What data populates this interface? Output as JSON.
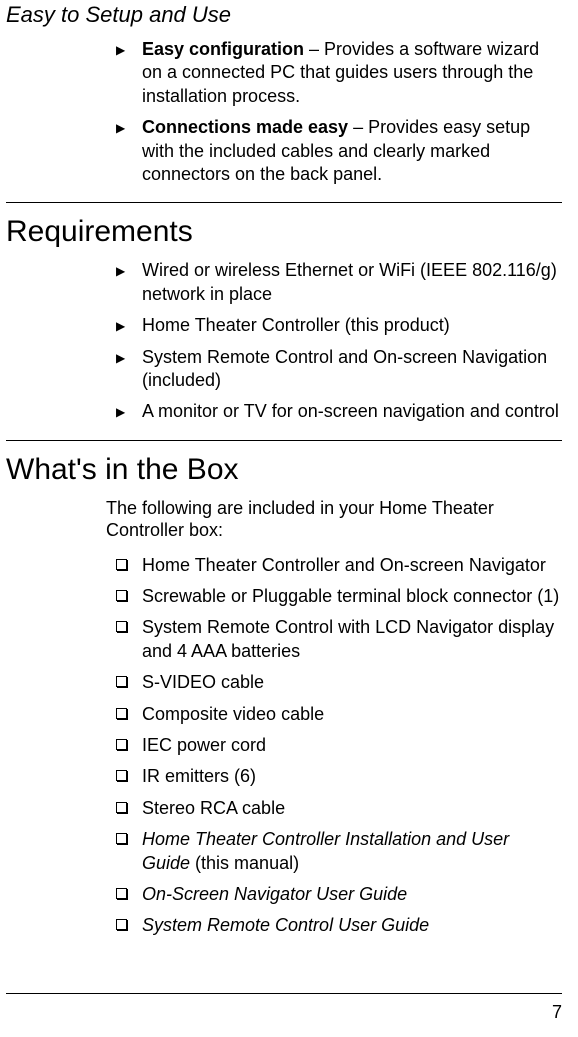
{
  "section1": {
    "title": "Easy to Setup and Use",
    "items": [
      {
        "bold": "Easy configuration",
        "rest": " – Provides a software wizard on a connected PC that guides users through the installation process."
      },
      {
        "bold": "Connections made easy",
        "rest": " – Provides easy setup with the included cables and clearly marked connectors on the back panel."
      }
    ]
  },
  "section2": {
    "title": "Requirements",
    "items": [
      "Wired or wireless Ethernet or WiFi (IEEE 802.116/g) network in place",
      "Home Theater Controller (this product)",
      "System Remote Control and On-screen Navigation (included)",
      "A monitor or TV for on-screen navigation and control"
    ]
  },
  "section3": {
    "title": "What's in the Box",
    "intro": "The following are included in your Home Theater Controller box:",
    "items": [
      {
        "text": "Home Theater Controller and On-screen Navigator",
        "italic": false
      },
      {
        "text": "Screwable or Pluggable terminal block connector (1)",
        "italic": false
      },
      {
        "text": "System Remote Control with LCD Navigator display and 4 AAA batteries",
        "italic": false
      },
      {
        "text": "S-VIDEO cable",
        "italic": false
      },
      {
        "text": "Composite video cable",
        "italic": false
      },
      {
        "text": "IEC power cord",
        "italic": false
      },
      {
        "text": "IR emitters (6)",
        "italic": false
      },
      {
        "text": "Stereo RCA cable",
        "italic": false
      },
      {
        "text": "Home Theater Controller Installation and User Guide",
        "italic": true,
        "suffix": " (this manual)"
      },
      {
        "text": "On-Screen Navigator User Guide",
        "italic": true
      },
      {
        "text": "System Remote Control User Guide",
        "italic": true
      }
    ]
  },
  "pageNumber": "7"
}
